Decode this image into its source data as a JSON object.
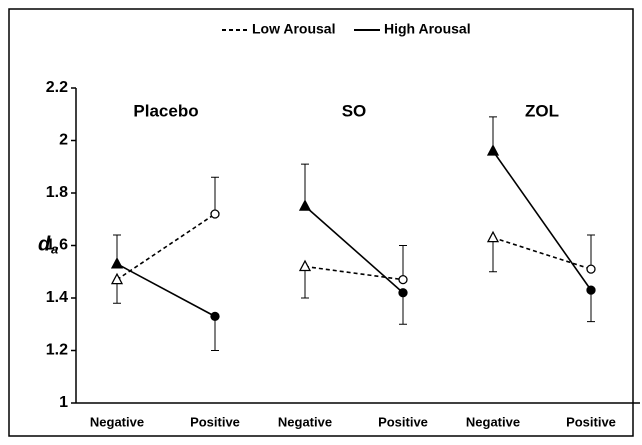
{
  "chart_data": {
    "type": "line",
    "ylabel_main": "d",
    "ylabel_sub": "a",
    "ylim": [
      1,
      2.2
    ],
    "yticks": [
      1,
      1.2,
      1.4,
      1.6,
      1.8,
      2,
      2.2
    ],
    "markers": [
      "triangle",
      "circle"
    ],
    "series_styles": [
      {
        "name": "Low Arousal",
        "dash": true,
        "filled": false
      },
      {
        "name": "High Arousal",
        "dash": false,
        "filled": true
      }
    ],
    "panels": [
      {
        "title": "Placebo",
        "categories": [
          "Negative",
          "Positive"
        ],
        "series": [
          {
            "values": [
              1.47,
              1.72
            ],
            "errors": [
              0.09,
              0.14
            ]
          },
          {
            "values": [
              1.53,
              1.33
            ],
            "errors": [
              0.11,
              0.13
            ]
          }
        ]
      },
      {
        "title": "SO",
        "categories": [
          "Negative",
          "Positive"
        ],
        "series": [
          {
            "values": [
              1.52,
              1.47
            ],
            "errors": [
              0.12,
              0.13
            ]
          },
          {
            "values": [
              1.75,
              1.42
            ],
            "errors": [
              0.16,
              0.12
            ]
          }
        ]
      },
      {
        "title": "ZOL",
        "categories": [
          "Negative",
          "Positive"
        ],
        "series": [
          {
            "values": [
              1.63,
              1.51
            ],
            "errors": [
              0.13,
              0.13
            ]
          },
          {
            "values": [
              1.96,
              1.43
            ],
            "errors": [
              0.13,
              0.12
            ]
          }
        ]
      }
    ]
  }
}
